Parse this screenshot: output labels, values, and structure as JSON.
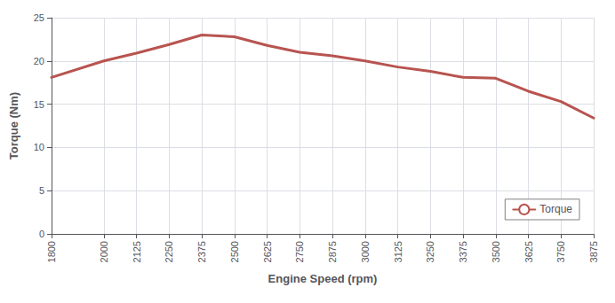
{
  "chart_data": {
    "type": "line",
    "x": [
      1800,
      2000,
      2125,
      2250,
      2375,
      2500,
      2625,
      2750,
      2875,
      3000,
      3125,
      3250,
      3375,
      3500,
      3625,
      3750,
      3875
    ],
    "series": [
      {
        "name": "Torque",
        "color": "#b85450",
        "values": [
          18.1,
          20.0,
          20.9,
          21.9,
          23.0,
          22.8,
          21.8,
          21.0,
          20.6,
          20.0,
          19.3,
          18.8,
          18.1,
          18.0,
          16.5,
          15.3,
          13.4
        ]
      }
    ],
    "xlabel": "Engine Speed (rpm)",
    "ylabel": "Torque (Nm)",
    "xlim": [
      1800,
      3875
    ],
    "ylim": [
      0,
      25
    ],
    "xticks": [
      1800,
      2000,
      2125,
      2250,
      2375,
      2500,
      2625,
      2750,
      2875,
      3000,
      3125,
      3250,
      3375,
      3500,
      3625,
      3750,
      3875
    ],
    "yticks": [
      0,
      5,
      10,
      15,
      20,
      25
    ],
    "grid": true,
    "legend": "lower right"
  }
}
